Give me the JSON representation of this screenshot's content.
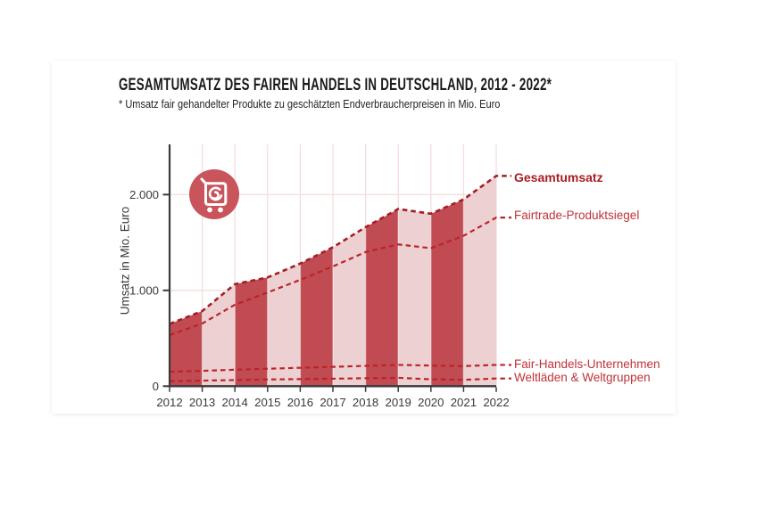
{
  "header": {
    "title": "GESAMTUMSATZ DES FAIREN HANDELS IN DEUTSCHLAND, 2012 - 2022*",
    "footnote": "* Umsatz fair gehandelter Produkte zu geschätzten Endverbraucherpreisen in Mio. Euro"
  },
  "icons": {
    "badge": "shopping-cart"
  },
  "chart_data": {
    "type": "area",
    "title": "Gesamtumsatz des Fairen Handels in Deutschland, 2012 - 2022",
    "ylabel": "Umsatz in Mio. Euro",
    "unit": "Mio. Euro",
    "x": [
      2012,
      2013,
      2014,
      2015,
      2016,
      2017,
      2018,
      2019,
      2020,
      2021,
      2022
    ],
    "series": [
      {
        "name": "Gesamtumsatz",
        "emphasis": true,
        "values": [
          650,
          784,
          1065,
          1135,
          1280,
          1450,
          1660,
          1850,
          1800,
          1950,
          2195
        ]
      },
      {
        "name": "Fairtrade-Produktsiegel",
        "emphasis": false,
        "values": [
          533,
          654,
          850,
          978,
          1110,
          1250,
          1400,
          1480,
          1440,
          1570,
          1760
        ]
      },
      {
        "name": "Fair-Handels-Unternehmen",
        "emphasis": false,
        "values": [
          150,
          160,
          172,
          182,
          192,
          202,
          212,
          222,
          215,
          210,
          222
        ]
      },
      {
        "name": "Weltläden & Weltgruppen",
        "emphasis": false,
        "values": [
          52,
          58,
          64,
          70,
          74,
          78,
          83,
          87,
          72,
          66,
          80
        ]
      }
    ],
    "yticks": [
      {
        "value": 0,
        "label": "0"
      },
      {
        "value": 1000,
        "label": "1.000"
      },
      {
        "value": 2000,
        "label": "2.000"
      }
    ],
    "ylim": [
      0,
      2520
    ],
    "grid": true,
    "legend_position": "right",
    "style_note": "area under Gesamtumsatz filled with alternating vertical year bands; all series drawn as dashed lines",
    "colors": {
      "band_dark": "#c04b52",
      "band_light": "#ecd0d2",
      "line": "#bb2328",
      "line_emphasis": "#a51e24",
      "legend_text": "#bf3338",
      "legend_text_emphasis": "#a81d23",
      "grid": "#f3dddd",
      "axis": "#3a3a3a",
      "icon_bg": "#c9545c",
      "title_text": "#1a1a1a"
    }
  }
}
